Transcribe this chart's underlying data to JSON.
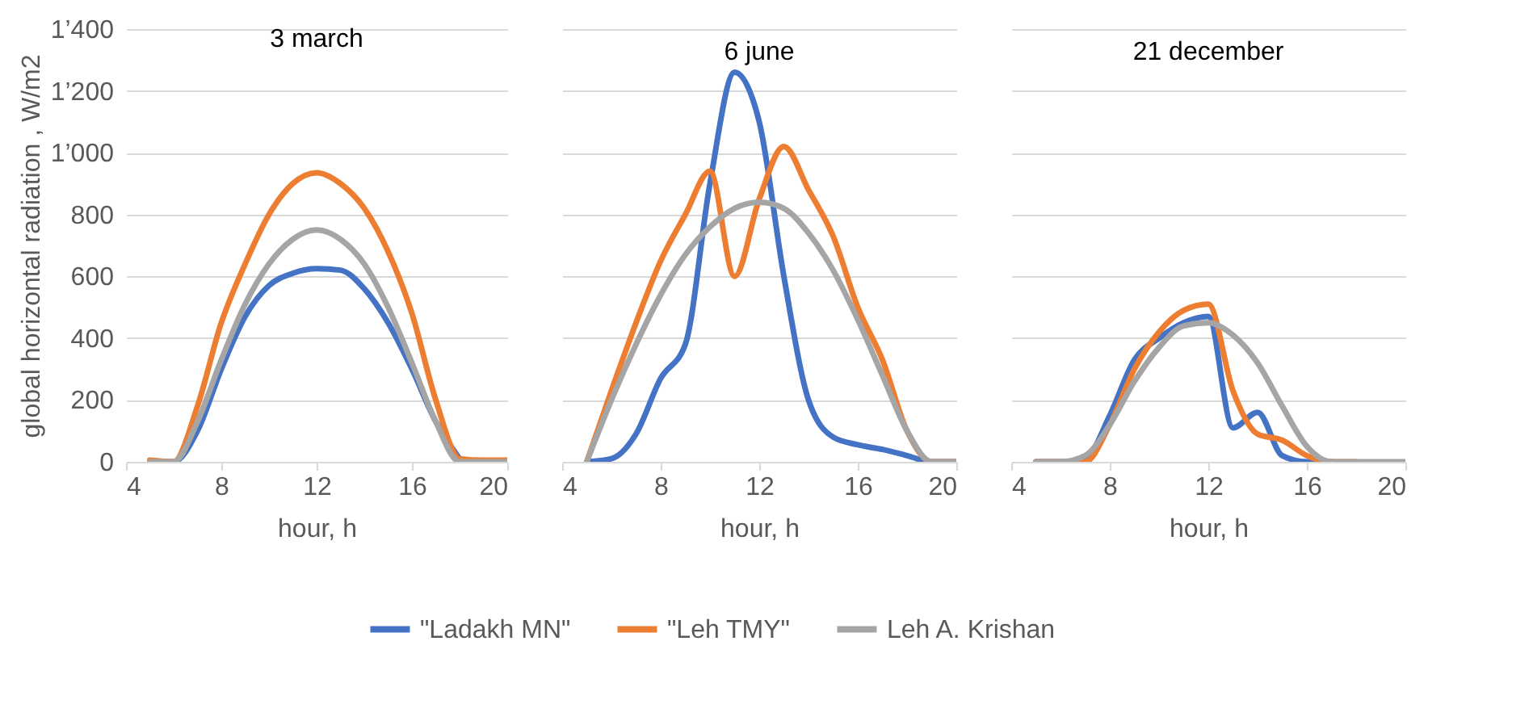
{
  "chart_data": [
    {
      "type": "line",
      "title": "3 march",
      "xlabel": "hour, h",
      "ylabel": "global horizontal radiation , W/m2",
      "x": [
        5,
        6,
        7,
        8,
        9,
        10,
        11,
        12,
        13,
        14,
        15,
        16,
        17,
        18,
        19,
        20
      ],
      "xlim": [
        4,
        20
      ],
      "xticks": [
        4,
        8,
        12,
        16,
        20
      ],
      "ylim": [
        0,
        1400
      ],
      "yticks": [
        0,
        200,
        400,
        600,
        800,
        {
          "value": 1000,
          "label": "1’000"
        },
        {
          "value": 1200,
          "label": "1’200"
        },
        {
          "value": 1400,
          "label": "1’400"
        }
      ],
      "grid": "y",
      "legend": "bottom",
      "marker": "none",
      "line_style": "solid",
      "series": [
        {
          "name": "\"Ladakh MN\"",
          "color": "#4472c4",
          "values": [
            0,
            0,
            100,
            300,
            470,
            570,
            610,
            625,
            620,
            560,
            450,
            300,
            130,
            10,
            null,
            null
          ]
        },
        {
          "name": "\"Leh TMY\"",
          "color": "#ed7d31",
          "values": [
            5,
            0,
            180,
            450,
            640,
            800,
            900,
            935,
            900,
            820,
            680,
            480,
            200,
            10,
            5,
            5
          ]
        },
        {
          "name": "Leh A. Krishan",
          "color": "#a5a5a5",
          "values": [
            0,
            0,
            130,
            330,
            510,
            640,
            720,
            750,
            720,
            640,
            500,
            320,
            130,
            0,
            0,
            0
          ]
        }
      ]
    },
    {
      "type": "line",
      "title": "6 june",
      "xlabel": "hour, h",
      "x": [
        5,
        6,
        7,
        8,
        9,
        10,
        11,
        12,
        13,
        14,
        15,
        16,
        17,
        18,
        19,
        20
      ],
      "xlim": [
        4,
        20
      ],
      "xticks": [
        4,
        8,
        12,
        16,
        20
      ],
      "ylim": [
        0,
        1400
      ],
      "yticks": [
        0,
        200,
        400,
        600,
        800,
        1000,
        1200,
        1400
      ],
      "tick_labels": "x",
      "grid": "y",
      "legend": "bottom",
      "marker": "none",
      "line_style": "solid",
      "series": [
        {
          "name": "\"Ladakh MN\"",
          "color": "#4472c4",
          "values": [
            0,
            10,
            90,
            270,
            380,
            900,
            1260,
            1100,
            600,
            200,
            80,
            55,
            40,
            20,
            0,
            0
          ]
        },
        {
          "name": "\"Leh TMY\"",
          "color": "#ed7d31",
          "values": [
            0,
            230,
            450,
            650,
            800,
            940,
            600,
            850,
            1020,
            880,
            730,
            500,
            330,
            100,
            0,
            0
          ]
        },
        {
          "name": "Leh A. Krishan",
          "color": "#a5a5a5",
          "values": [
            0,
            200,
            380,
            540,
            670,
            760,
            820,
            840,
            820,
            740,
            620,
            460,
            280,
            100,
            0,
            0
          ]
        }
      ]
    },
    {
      "type": "line",
      "title": "21 december",
      "xlabel": "hour, h",
      "x": [
        5,
        6,
        7,
        8,
        9,
        10,
        11,
        12,
        13,
        14,
        15,
        16,
        17,
        18,
        19,
        20
      ],
      "xlim": [
        4,
        20
      ],
      "xticks": [
        4,
        8,
        12,
        16,
        20
      ],
      "ylim": [
        0,
        1400
      ],
      "yticks": [
        0,
        200,
        400,
        600,
        800,
        1000,
        1200,
        1400
      ],
      "tick_labels": "x",
      "grid": "y",
      "legend": "bottom",
      "marker": "none",
      "line_style": "solid",
      "series": [
        {
          "name": "\"Ladakh MN\"",
          "color": "#4472c4",
          "values": [
            0,
            0,
            10,
            150,
            330,
            400,
            450,
            470,
            110,
            160,
            20,
            0,
            0,
            null,
            null,
            null
          ]
        },
        {
          "name": "\"Leh TMY\"",
          "color": "#ed7d31",
          "values": [
            0,
            0,
            0,
            120,
            300,
            420,
            490,
            510,
            230,
            90,
            70,
            20,
            0,
            0,
            null,
            null
          ]
        },
        {
          "name": "Leh A. Krishan",
          "color": "#a5a5a5",
          "values": [
            0,
            0,
            20,
            120,
            260,
            370,
            440,
            450,
            410,
            320,
            180,
            50,
            0,
            0,
            0,
            0
          ]
        }
      ]
    }
  ]
}
